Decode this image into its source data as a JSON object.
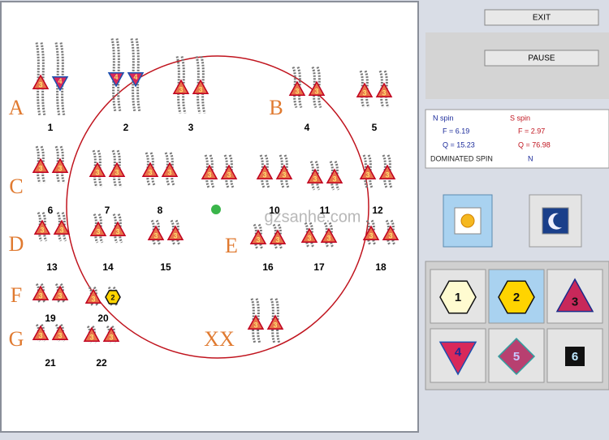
{
  "buttons": [
    "EXIT",
    "PAUSE"
  ],
  "groups": [
    "A",
    "B",
    "C",
    "D",
    "E",
    "F",
    "G",
    "XX"
  ],
  "chromosomes": [
    {
      "label": "1",
      "markers": [
        "3",
        "4"
      ]
    },
    {
      "label": "2",
      "markers": [
        "4",
        "4"
      ]
    },
    {
      "label": "3",
      "markers": [
        "3",
        "3"
      ]
    },
    {
      "label": "4",
      "markers": [
        "3",
        "3"
      ]
    },
    {
      "label": "5",
      "markers": [
        "3",
        "3"
      ]
    },
    {
      "label": "6",
      "markers": [
        "3",
        "3"
      ]
    },
    {
      "label": "7",
      "markers": [
        "3",
        "3"
      ]
    },
    {
      "label": "8",
      "markers": [
        "3",
        "3"
      ]
    },
    {
      "label": null,
      "markers": [
        "3",
        "3"
      ]
    },
    {
      "label": "10",
      "markers": [
        "3",
        "3"
      ]
    },
    {
      "label": "11",
      "markers": [
        "3",
        "3"
      ]
    },
    {
      "label": "12",
      "markers": [
        "3",
        "3"
      ]
    },
    {
      "label": "13",
      "markers": [
        "3",
        "3"
      ]
    },
    {
      "label": "14",
      "markers": [
        "3",
        "3"
      ]
    },
    {
      "label": "15",
      "markers": [
        "3",
        "3"
      ]
    },
    {
      "label": "16",
      "markers": [
        "3",
        "3"
      ]
    },
    {
      "label": "17",
      "markers": [
        "3",
        "3"
      ]
    },
    {
      "label": "18",
      "markers": [
        "3",
        "3"
      ]
    },
    {
      "label": "19",
      "markers": [
        "3",
        "3"
      ]
    },
    {
      "label": "20",
      "markers": [
        "3",
        "2"
      ]
    },
    {
      "label": "21",
      "markers": [
        "3",
        "3"
      ]
    },
    {
      "label": "22",
      "markers": [
        "3",
        "3"
      ]
    },
    {
      "label": null,
      "markers": [
        "3",
        "3"
      ]
    }
  ],
  "watermark": "gzsanhe.com",
  "spin": {
    "n_title": "N spin",
    "s_title": "S spin",
    "n_f": "F =  6.19",
    "n_q": "Q = 15.23",
    "s_f": "F =  2.97",
    "s_q": "Q = 76.98",
    "dominated_label": "DOMINATED SPIN",
    "dominated_value": "N"
  },
  "shapes": [
    "1",
    "2",
    "3",
    "4",
    "5",
    "6"
  ]
}
